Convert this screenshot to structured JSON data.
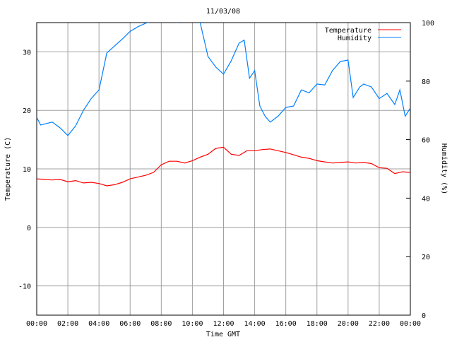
{
  "chart_data": {
    "type": "line",
    "title": "11/03/08",
    "xlabel": "Time GMT",
    "ylabel": "Temperature (C)",
    "y2label": "Humidity (%)",
    "xlim": [
      0,
      24
    ],
    "ylim": [
      -15,
      35
    ],
    "y2lim": [
      0,
      100
    ],
    "x_ticks": [
      "00:00",
      "02:00",
      "04:00",
      "06:00",
      "08:00",
      "10:00",
      "12:00",
      "14:00",
      "16:00",
      "18:00",
      "20:00",
      "22:00",
      "00:00"
    ],
    "y_ticks": [
      -10,
      0,
      10,
      20,
      30
    ],
    "y2_ticks": [
      0,
      20,
      40,
      60,
      80,
      100
    ],
    "grid": true,
    "legend_position": "top-right",
    "colors": {
      "Temperature": "#ff0000",
      "Humidity": "#0080ff",
      "grid": "#a0a0a0"
    },
    "series": [
      {
        "name": "Temperature",
        "axis": "left",
        "x": [
          0,
          0.5,
          1,
          1.5,
          2,
          2.5,
          3,
          3.5,
          4,
          4.5,
          5,
          5.5,
          6,
          6.5,
          7,
          7.5,
          8,
          8.5,
          9,
          9.5,
          10,
          10.5,
          11,
          11.5,
          12,
          12.5,
          13,
          13.5,
          14,
          14.5,
          15,
          15.5,
          16,
          16.5,
          17,
          17.5,
          18,
          18.5,
          19,
          19.5,
          20,
          20.5,
          21,
          21.5,
          22,
          22.5,
          23,
          23.5,
          24
        ],
        "y": [
          8.3,
          8.2,
          8.1,
          8.2,
          7.8,
          8.0,
          7.6,
          7.7,
          7.5,
          7.1,
          7.3,
          7.7,
          8.3,
          8.6,
          8.9,
          9.4,
          10.7,
          11.3,
          11.3,
          11.0,
          11.4,
          12.0,
          12.5,
          13.5,
          13.7,
          12.5,
          12.3,
          13.1,
          13.1,
          13.3,
          13.4,
          13.1,
          12.8,
          12.4,
          12.0,
          11.8,
          11.4,
          11.2,
          11.0,
          11.1,
          11.2,
          11.0,
          11.1,
          10.9,
          10.2,
          10.1,
          9.2,
          9.5,
          9.4
        ]
      },
      {
        "name": "Humidity",
        "axis": "right",
        "x": [
          0,
          0.25,
          1,
          1.5,
          2,
          2.5,
          3,
          3.5,
          4,
          4.5,
          5,
          5.5,
          6,
          6.5,
          7,
          7.5,
          8,
          8.5,
          9,
          9.5,
          10,
          10.5,
          11,
          11.5,
          12,
          12.5,
          13,
          13.33,
          13.67,
          14,
          14.33,
          14.67,
          15,
          15.5,
          16,
          16.5,
          17,
          17.5,
          18,
          18.5,
          19,
          19.5,
          20,
          20.33,
          20.75,
          21,
          21.5,
          22,
          22.5,
          23,
          23.33,
          23.67,
          24
        ],
        "y": [
          67.6,
          65,
          66,
          64,
          61.4,
          64.7,
          70,
          74,
          77,
          89.6,
          92,
          94.4,
          97,
          98.6,
          99.8,
          100.5,
          102,
          103,
          100,
          102,
          104,
          100,
          88.4,
          84.8,
          82.4,
          87,
          93,
          94,
          81,
          83.6,
          71.5,
          68,
          66,
          68,
          71,
          71.5,
          77,
          76,
          79,
          78.7,
          83.6,
          86.7,
          87.2,
          74.4,
          78,
          79,
          78,
          74,
          75.8,
          72,
          77,
          68,
          70.8
        ]
      }
    ]
  }
}
